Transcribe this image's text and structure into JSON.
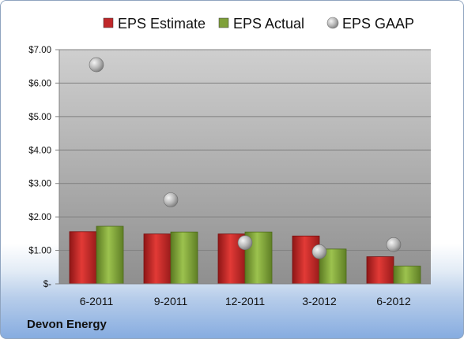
{
  "company": "Devon Energy",
  "legend": [
    {
      "label": "EPS Estimate",
      "color": "#c0282a",
      "shape": "square"
    },
    {
      "label": "EPS Actual",
      "color": "#7fa03a",
      "shape": "square"
    },
    {
      "label": "EPS GAAP",
      "color": "#a9a9a9",
      "shape": "sphere"
    }
  ],
  "chart_data": {
    "type": "bar",
    "categories": [
      "6-2011",
      "9-2011",
      "12-2011",
      "3-2012",
      "6-2012"
    ],
    "series": [
      {
        "name": "EPS Estimate",
        "type": "bar",
        "color": "#c0282a",
        "values": [
          1.56,
          1.49,
          1.49,
          1.43,
          0.81
        ]
      },
      {
        "name": "EPS Actual",
        "type": "bar",
        "color": "#7fa03a",
        "values": [
          1.72,
          1.55,
          1.55,
          1.04,
          0.53
        ]
      },
      {
        "name": "EPS GAAP",
        "type": "scatter",
        "color": "#a9a9a9",
        "values": [
          6.55,
          2.51,
          1.23,
          0.96,
          1.17
        ]
      }
    ],
    "yticks": [
      "$-",
      "$1.00",
      "$2.00",
      "$3.00",
      "$4.00",
      "$5.00",
      "$6.00",
      "$7.00"
    ],
    "ylim": [
      0,
      7
    ],
    "grid": true,
    "legend_position": "top"
  }
}
